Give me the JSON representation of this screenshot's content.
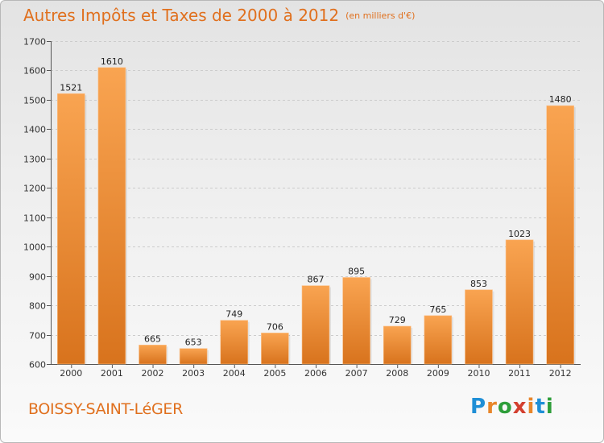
{
  "header": {
    "title": "Autres Impôts et Taxes de 2000 à 2012",
    "subtitle": "(en milliers d'€)"
  },
  "footer": {
    "city": "BOISSY-SAINT-LéGER",
    "logo": "Proxiti"
  },
  "colors": {
    "title": "#e0701e",
    "bar_top": "#f9a451",
    "bar_bottom": "#d8731d",
    "grid": "#cccccc"
  },
  "chart_data": {
    "type": "bar",
    "title": "Autres Impôts et Taxes de 2000 à 2012",
    "subtitle": "(en milliers d'€)",
    "categories": [
      "2000",
      "2001",
      "2002",
      "2003",
      "2004",
      "2005",
      "2006",
      "2007",
      "2008",
      "2009",
      "2010",
      "2011",
      "2012"
    ],
    "values": [
      1521,
      1610,
      665,
      653,
      749,
      706,
      867,
      895,
      729,
      765,
      853,
      1023,
      1480
    ],
    "ylim": [
      600,
      1700
    ],
    "yticks": [
      600,
      700,
      800,
      900,
      1000,
      1100,
      1200,
      1300,
      1400,
      1500,
      1600,
      1700
    ],
    "grid": true,
    "data_labels": true
  }
}
